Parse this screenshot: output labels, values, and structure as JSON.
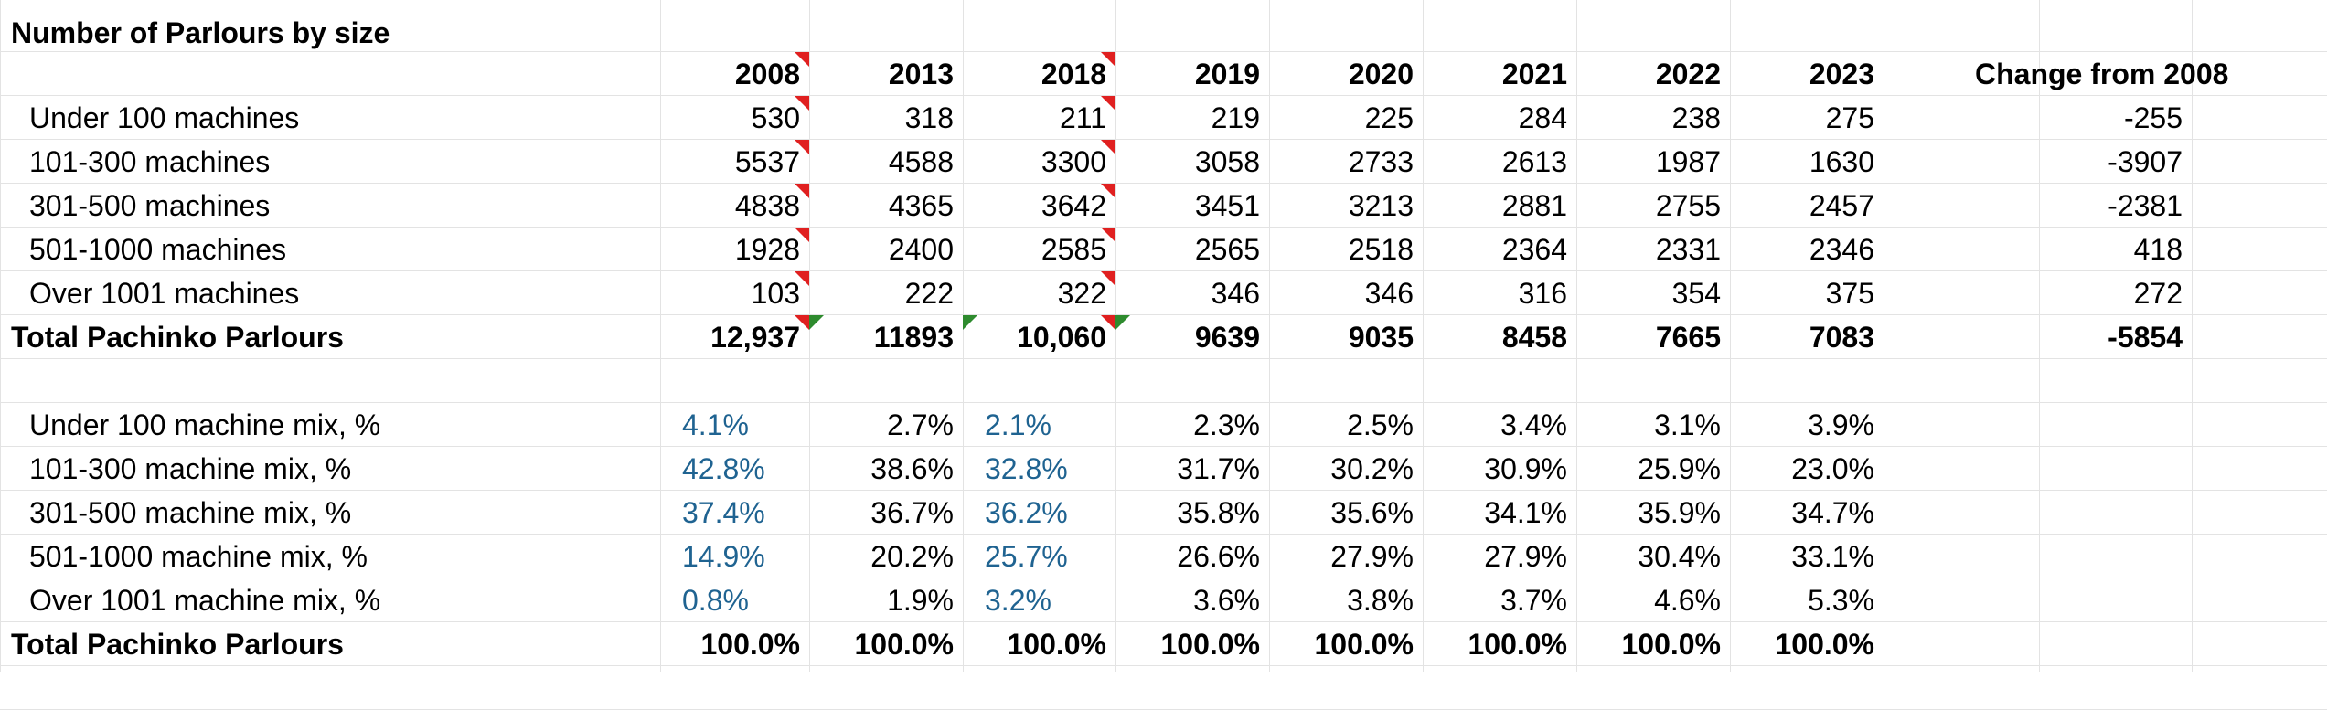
{
  "sheet": {
    "title": "Number of Parlours by size",
    "years": [
      "2008",
      "2013",
      "2018",
      "2019",
      "2020",
      "2021",
      "2022",
      "2023"
    ],
    "change_header": "Change from 2008",
    "counts": [
      {
        "label": "Under 100 machines",
        "values": [
          "530",
          "318",
          "211",
          "219",
          "225",
          "284",
          "238",
          "275"
        ],
        "change": "-255"
      },
      {
        "label": "101-300 machines",
        "values": [
          "5537",
          "4588",
          "3300",
          "3058",
          "2733",
          "2613",
          "1987",
          "1630"
        ],
        "change": "-3907"
      },
      {
        "label": "301-500 machines",
        "values": [
          "4838",
          "4365",
          "3642",
          "3451",
          "3213",
          "2881",
          "2755",
          "2457"
        ],
        "change": "-2381"
      },
      {
        "label": "501-1000 machines",
        "values": [
          "1928",
          "2400",
          "2585",
          "2565",
          "2518",
          "2364",
          "2331",
          "2346"
        ],
        "change": "418"
      },
      {
        "label": "Over 1001 machines",
        "values": [
          "103",
          "222",
          "322",
          "346",
          "346",
          "316",
          "354",
          "375"
        ],
        "change": "272"
      }
    ],
    "total": {
      "label": "Total Pachinko Parlours",
      "values": [
        "12,937",
        "11893",
        "10,060",
        "9639",
        "9035",
        "8458",
        "7665",
        "7083"
      ],
      "change": "-5854"
    },
    "mix": [
      {
        "label": "Under 100 machine mix, %",
        "values": [
          "4.1%",
          "2.7%",
          "2.1%",
          "2.3%",
          "2.5%",
          "3.4%",
          "3.1%",
          "3.9%"
        ]
      },
      {
        "label": "101-300 machine mix, %",
        "values": [
          "42.8%",
          "38.6%",
          "32.8%",
          "31.7%",
          "30.2%",
          "30.9%",
          "25.9%",
          "23.0%"
        ]
      },
      {
        "label": "301-500 machine mix, %",
        "values": [
          "37.4%",
          "36.7%",
          "36.2%",
          "35.8%",
          "35.6%",
          "34.1%",
          "35.9%",
          "34.7%"
        ]
      },
      {
        "label": "501-1000 machine mix, %",
        "values": [
          "14.9%",
          "20.2%",
          "25.7%",
          "26.6%",
          "27.9%",
          "27.9%",
          "30.4%",
          "33.1%"
        ]
      },
      {
        "label": "Over 1001 machine mix, %",
        "values": [
          "0.8%",
          "1.9%",
          "3.2%",
          "3.6%",
          "3.8%",
          "3.7%",
          "4.6%",
          "5.3%"
        ]
      }
    ],
    "mix_total": {
      "label": "Total Pachinko Parlours",
      "values": [
        "100.0%",
        "100.0%",
        "100.0%",
        "100.0%",
        "100.0%",
        "100.0%",
        "100.0%",
        "100.0%"
      ]
    },
    "colors": {
      "gridline": "#e3e3e3",
      "input_blue": "#1f6391",
      "comment_red": "#e02020",
      "note_green": "#2e8b2e"
    }
  }
}
